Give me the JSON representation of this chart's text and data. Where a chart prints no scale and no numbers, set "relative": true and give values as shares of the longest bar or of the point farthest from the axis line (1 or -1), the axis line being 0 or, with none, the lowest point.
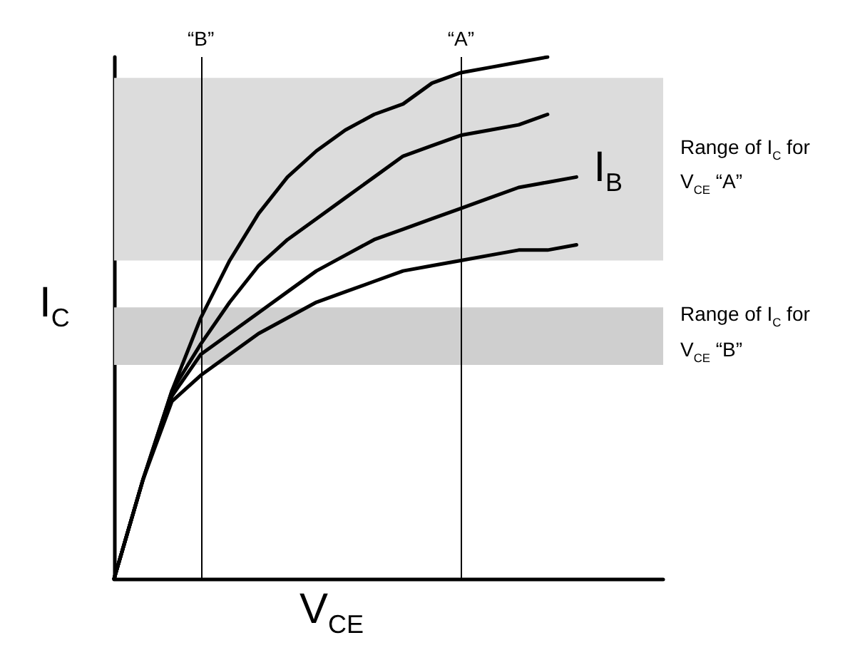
{
  "chart_data": {
    "type": "line",
    "relative": true,
    "xlabel": "V$_{CE}$",
    "ylabel": "I$_{C}$",
    "tick_labels": false,
    "grid": false,
    "marker": "none",
    "line_style": "solid",
    "categories": [
      null,
      null,
      null,
      null,
      null,
      null,
      null,
      null,
      null,
      null,
      null,
      null,
      null,
      null,
      null,
      null,
      null,
      null,
      null,
      null
    ],
    "annotations": [
      "“B”",
      "“A”",
      "I$_{B}$"
    ],
    "bands": [
      {
        "axis": "y",
        "from": 0.61,
        "to": 0.96,
        "label": "Range of I$_{C}$ for V$_{CE}$ “A”",
        "color": "#dcdcdc"
      },
      {
        "axis": "y",
        "from": 0.41,
        "to": 0.52,
        "label": "Range of I$_{C}$ for V$_{CE}$ “B”",
        "color": "#cfcfcf"
      }
    ],
    "series": [
      {
        "color": "#000000",
        "values": [
          0,
          0.19,
          0.36,
          0.5,
          0.61,
          0.7,
          0.77,
          0.82,
          0.86,
          0.89,
          0.91,
          0.95,
          0.97,
          0.98,
          0.99,
          1,
          null,
          null,
          null,
          null
        ]
      },
      {
        "color": "#000000",
        "values": [
          0,
          0.19,
          0.36,
          0.45,
          0.53,
          0.6,
          0.65,
          0.69,
          0.73,
          0.77,
          0.81,
          0.83,
          0.85,
          0.86,
          0.87,
          0.89,
          null,
          null,
          null,
          null
        ]
      },
      {
        "color": "#000000",
        "values": [
          0,
          0.19,
          0.35,
          0.43,
          0.47,
          0.51,
          0.55,
          0.59,
          0.62,
          0.65,
          0.67,
          0.69,
          0.71,
          0.73,
          0.75,
          0.76,
          0.77,
          null,
          null,
          null
        ]
      },
      {
        "color": "#000000",
        "values": [
          0,
          0.19,
          0.34,
          0.39,
          0.43,
          0.47,
          0.5,
          0.53,
          0.55,
          0.57,
          0.59,
          0.6,
          0.61,
          0.62,
          0.63,
          0.63,
          0.64,
          null,
          null,
          null
        ]
      }
    ]
  }
}
